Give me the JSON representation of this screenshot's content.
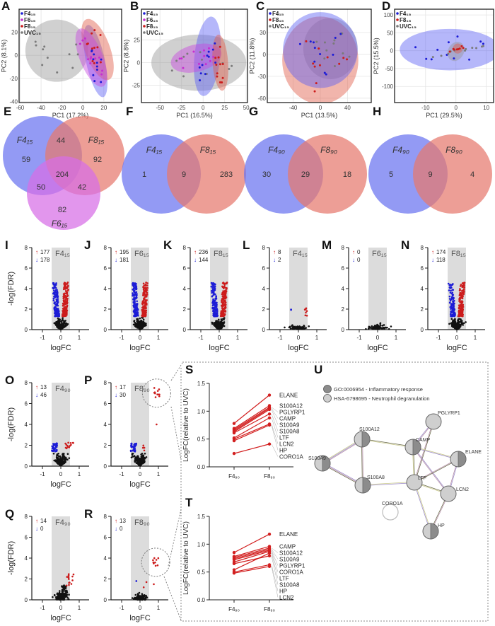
{
  "colors": {
    "F4": "#1c1cd6",
    "F6": "#c62fd0",
    "F8": "#cc1c1c",
    "UVC": "#7a7a7a",
    "up": "#cc1c1c",
    "down": "#1c1cd6",
    "ns": "#111111"
  },
  "chart_data": [
    {
      "panel": "A",
      "type": "scatter",
      "xlabel": "PC1 (17.2%)",
      "ylabel": "PC2 (8.1%)",
      "xlim": [
        -61,
        37
      ],
      "ylim": [
        -41,
        40
      ],
      "xticks": [
        -60,
        -40,
        -20,
        0,
        20
      ],
      "yticks": [
        -40,
        -20,
        0,
        20
      ],
      "grid": true,
      "legend_position": "top-left",
      "legend": [
        {
          "name": "F4₁₅",
          "color": "#1c1cd6"
        },
        {
          "name": "F6₁₅",
          "color": "#c62fd0"
        },
        {
          "name": "F8₁₅",
          "color": "#cc1c1c"
        },
        {
          "name": "UVC₁₅",
          "color": "#7a7a7a"
        }
      ],
      "ellipses": [
        {
          "group": "UVC₁₅",
          "cx": -25,
          "cy": 4,
          "rx": 30,
          "ry": 27,
          "angle": -8
        },
        {
          "group": "F4₁₅",
          "cx": 12,
          "cy": -5,
          "rx": 9,
          "ry": 32,
          "angle": 12
        },
        {
          "group": "F8₁₅",
          "cx": 14,
          "cy": 5,
          "rx": 12,
          "ry": 28,
          "angle": 20
        },
        {
          "group": "F6₁₅",
          "cx": 8,
          "cy": -2,
          "rx": 11,
          "ry": 27,
          "angle": 22
        }
      ]
    },
    {
      "panel": "B",
      "type": "scatter",
      "xlabel": "PC1 (16.5%)",
      "ylabel": "PC2 (8.8%)",
      "xlim": [
        -71.5,
        51.5
      ],
      "ylim": [
        -44,
        59
      ],
      "xticks": [
        -50,
        -25,
        0,
        25,
        50
      ],
      "yticks": [
        -25,
        0,
        25
      ],
      "grid": true,
      "legend_position": "top-left",
      "legend": [
        {
          "name": "F4₁₅",
          "color": "#1c1cd6"
        },
        {
          "name": "F6₁₅",
          "color": "#c62fd0"
        },
        {
          "name": "F8₁₅",
          "color": "#cc1c1c"
        },
        {
          "name": "UVC₁₅",
          "color": "#7a7a7a"
        }
      ],
      "ellipses": [
        {
          "group": "UVC₁₅",
          "cx": -5,
          "cy": 0,
          "rx": 55,
          "ry": 31,
          "angle": 0
        },
        {
          "group": "F4₁₅",
          "cx": 5,
          "cy": 7,
          "rx": 15,
          "ry": 44,
          "angle": -6
        },
        {
          "group": "F6₁₅",
          "cx": -8,
          "cy": 5,
          "rx": 30,
          "ry": 15,
          "angle": 14
        },
        {
          "group": "F8₁₅",
          "cx": 20,
          "cy": 0,
          "rx": 9,
          "ry": 31,
          "angle": 4
        }
      ]
    },
    {
      "panel": "C",
      "type": "scatter",
      "xlabel": "PC1 (13.5%)",
      "ylabel": "PC2 (11.8%)",
      "xlim": [
        -78,
        75
      ],
      "ylim": [
        -66,
        62
      ],
      "xticks": [
        -40,
        0,
        40
      ],
      "yticks": [
        -60,
        -30,
        0,
        30
      ],
      "grid": true,
      "legend_position": "top-left",
      "legend": [
        {
          "name": "F4₁₅",
          "color": "#1c1cd6"
        },
        {
          "name": "F8₁₅",
          "color": "#cc1c1c"
        },
        {
          "name": "UVC₁₅",
          "color": "#7a7a7a"
        }
      ],
      "ellipses": [
        {
          "group": "UVC₁₅",
          "cx": 15,
          "cy": 8,
          "rx": 40,
          "ry": 42,
          "angle": 0
        },
        {
          "group": "F8₁₅",
          "cx": 0,
          "cy": -8,
          "rx": 56,
          "ry": 60,
          "angle": 0
        },
        {
          "group": "F4₁₅",
          "cx": 0,
          "cy": 6,
          "rx": 55,
          "ry": 52,
          "angle": 0
        }
      ]
    },
    {
      "panel": "D",
      "type": "scatter",
      "xlabel": "PC1 (29.5%)",
      "ylabel": "PC2 (15.5%)",
      "xlim": [
        -20.2,
        12.4
      ],
      "ylim": [
        -145,
        116
      ],
      "xticks": [
        -10,
        0,
        10
      ],
      "yticks": [
        -100,
        -50,
        0,
        50,
        100
      ],
      "grid": true,
      "legend_position": "top-left",
      "legend": [
        {
          "name": "F4₁₅",
          "color": "#1c1cd6"
        },
        {
          "name": "F8₁₅",
          "color": "#cc1c1c"
        },
        {
          "name": "UVC₁₅",
          "color": "#7a7a7a"
        }
      ],
      "ellipses": [
        {
          "group": "F4₁₅",
          "cx": -2,
          "cy": 3,
          "rx": 16.5,
          "ry": 58,
          "angle": 0
        },
        {
          "group": "UVC₁₅",
          "cx": 0,
          "cy": -2,
          "rx": 2.6,
          "ry": 28,
          "angle": -28
        },
        {
          "group": "F8₁₅",
          "cx": 0.6,
          "cy": 6,
          "rx": 1.6,
          "ry": 14,
          "angle": -20
        }
      ]
    },
    {
      "panel": "E",
      "type": "venn",
      "sets": [
        "F4₁₅",
        "F8₁₅",
        "F6₁₅"
      ],
      "regions": [
        {
          "sets": [
            "F4₁₅"
          ],
          "value": 59
        },
        {
          "sets": [
            "F4₁₅",
            "F8₁₅"
          ],
          "value": 44
        },
        {
          "sets": [
            "F8₁₅"
          ],
          "value": 92
        },
        {
          "sets": [
            "F4₁₅",
            "F8₁₅",
            "F6₁₅"
          ],
          "value": 204
        },
        {
          "sets": [
            "F4₁₅",
            "F6₁₅"
          ],
          "value": 50
        },
        {
          "sets": [
            "F8₁₅",
            "F6₁₅"
          ],
          "value": 42
        },
        {
          "sets": [
            "F6₁₅"
          ],
          "value": 82
        }
      ]
    },
    {
      "panel": "F",
      "type": "venn",
      "sets": [
        "F4₁₅",
        "F8₁₅"
      ],
      "regions": [
        {
          "sets": [
            "F4₁₅"
          ],
          "value": 1
        },
        {
          "sets": [
            "F4₁₅",
            "F8₁₅"
          ],
          "value": 9
        },
        {
          "sets": [
            "F8₁₅"
          ],
          "value": 283
        }
      ]
    },
    {
      "panel": "G",
      "type": "venn",
      "sets": [
        "F4₉₀",
        "F8₉₀"
      ],
      "regions": [
        {
          "sets": [
            "F4₉₀"
          ],
          "value": 30
        },
        {
          "sets": [
            "F4₉₀",
            "F8₉₀"
          ],
          "value": 29
        },
        {
          "sets": [
            "F8₉₀"
          ],
          "value": 18
        }
      ]
    },
    {
      "panel": "H",
      "type": "venn",
      "sets": [
        "F4₉₀",
        "F8₉₀"
      ],
      "regions": [
        {
          "sets": [
            "F4₉₀"
          ],
          "value": 5
        },
        {
          "sets": [
            "F4₉₀",
            "F8₉₀"
          ],
          "value": 9
        },
        {
          "sets": [
            "F8₉₀"
          ],
          "value": 4
        }
      ]
    },
    {
      "panel": "I",
      "type": "scatter",
      "condition": "F4₁₅",
      "up": 177,
      "down": 178,
      "xlabel": "logFC",
      "ylabel": "-log(FDR)",
      "xticks": [
        -1,
        0,
        1
      ],
      "yticks": [
        0,
        2,
        4,
        6,
        8
      ],
      "ylim": [
        0,
        8
      ],
      "shaded_band": [
        -0.5,
        0.5
      ]
    },
    {
      "panel": "J",
      "type": "scatter",
      "condition": "F6₁₅",
      "up": 195,
      "down": 181,
      "xlabel": "logFC",
      "xticks": [
        -1,
        0,
        1
      ],
      "yticks": [
        0,
        2,
        4,
        6,
        8
      ],
      "ylim": [
        0,
        8
      ],
      "shaded_band": [
        -0.5,
        0.5
      ]
    },
    {
      "panel": "K",
      "type": "scatter",
      "condition": "F8₁₅",
      "up": 236,
      "down": 144,
      "xlabel": "logFC",
      "xticks": [
        -1,
        0,
        1
      ],
      "yticks": [
        0,
        2,
        4,
        6,
        8
      ],
      "ylim": [
        0,
        8
      ],
      "shaded_band": [
        -0.5,
        0.5
      ]
    },
    {
      "panel": "L",
      "type": "scatter",
      "condition": "F4₁₅",
      "up": 8,
      "down": 2,
      "xlabel": "logFC",
      "xticks": [
        -1,
        0,
        1
      ],
      "yticks": [
        0,
        2,
        4,
        6,
        8
      ],
      "ylim": [
        0,
        8
      ],
      "shaded_band": [
        -0.5,
        0.5
      ]
    },
    {
      "panel": "M",
      "type": "scatter",
      "condition": "F6₁₅",
      "up": 0,
      "down": 0,
      "xlabel": "logFC",
      "xticks": [
        -1,
        0,
        1
      ],
      "yticks": [
        0,
        2,
        4,
        6,
        8
      ],
      "ylim": [
        0,
        8
      ],
      "shaded_band": [
        -0.5,
        0.5
      ]
    },
    {
      "panel": "N",
      "type": "scatter",
      "condition": "F8₁₅",
      "up": 174,
      "down": 118,
      "xlabel": "logFC",
      "xticks": [
        -1,
        0,
        1
      ],
      "yticks": [
        0,
        2,
        4,
        6,
        8
      ],
      "ylim": [
        0,
        8
      ],
      "shaded_band": [
        -0.5,
        0.5
      ]
    },
    {
      "panel": "O",
      "type": "scatter",
      "condition": "F4₉₀",
      "up": 13,
      "down": 46,
      "xlabel": "logFC",
      "ylabel": "-log(FDR)",
      "xticks": [
        -1,
        0,
        1
      ],
      "yticks": [
        0,
        2,
        4,
        6,
        8
      ],
      "ylim": [
        0,
        8
      ],
      "shaded_band": [
        -0.5,
        0.5
      ]
    },
    {
      "panel": "P",
      "type": "scatter",
      "condition": "F8₉₀",
      "up": 17,
      "down": 30,
      "xlabel": "logFC",
      "xticks": [
        -1,
        0,
        1
      ],
      "yticks": [
        0,
        2,
        4,
        6,
        8
      ],
      "ylim": [
        0,
        8
      ],
      "shaded_band": [
        -0.5,
        0.5
      ]
    },
    {
      "panel": "Q",
      "type": "scatter",
      "condition": "F4₉₀",
      "up": 14,
      "down": 0,
      "xlabel": "logFC",
      "ylabel": "-log(FDR)",
      "xticks": [
        -1,
        0,
        1
      ],
      "yticks": [
        0,
        2,
        4,
        6,
        8
      ],
      "ylim": [
        0,
        8
      ],
      "shaded_band": [
        -0.5,
        0.5
      ]
    },
    {
      "panel": "R",
      "type": "scatter",
      "condition": "F8₉₀",
      "up": 13,
      "down": 0,
      "xlabel": "logFC",
      "xticks": [
        -1,
        0,
        1
      ],
      "yticks": [
        0,
        2,
        4,
        6,
        8
      ],
      "ylim": [
        0,
        8
      ],
      "shaded_band": [
        -0.5,
        0.5
      ]
    },
    {
      "panel": "S",
      "type": "line",
      "ylabel": "LogFC(relative to  UVC)",
      "categories": [
        "F4₉₀",
        "F8₉₀"
      ],
      "ylim": [
        0,
        1.5
      ],
      "yticks": [
        "0.0",
        "0.5",
        "1.0",
        "1.5"
      ],
      "series": [
        {
          "name": "ELANE",
          "values": [
            0.78,
            1.29
          ]
        },
        {
          "name": "S100A12",
          "values": [
            0.69,
            1.1
          ]
        },
        {
          "name": "PGLYRP1",
          "values": [
            0.67,
            1.07
          ]
        },
        {
          "name": "CAMP",
          "values": [
            0.65,
            1.05
          ]
        },
        {
          "name": "S100A9",
          "values": [
            0.63,
            1.03
          ]
        },
        {
          "name": "S100A8",
          "values": [
            0.61,
            0.95
          ]
        },
        {
          "name": "LTF",
          "values": [
            0.52,
            0.88
          ]
        },
        {
          "name": "LCN2",
          "values": [
            0.5,
            0.77
          ]
        },
        {
          "name": "HP",
          "values": [
            0.47,
            0.75
          ]
        },
        {
          "name": "CORO1A",
          "values": [
            0.24,
            0.41
          ]
        }
      ]
    },
    {
      "panel": "T",
      "type": "line",
      "ylabel": "LogFC(relative to  UVC)",
      "categories": [
        "F4₉₀",
        "F8₉₀"
      ],
      "ylim": [
        0,
        1.5
      ],
      "yticks": [
        "0.0",
        "0.5",
        "1.0",
        "1.5"
      ],
      "series": [
        {
          "name": "ELANE",
          "values": [
            0.85,
            1.18
          ]
        },
        {
          "name": "CAMP",
          "values": [
            0.78,
            0.96
          ]
        },
        {
          "name": "S100A12",
          "values": [
            0.76,
            0.93
          ]
        },
        {
          "name": "S100A9",
          "values": [
            0.74,
            0.91
          ]
        },
        {
          "name": "PGLYRP1",
          "values": [
            0.72,
            0.89
          ]
        },
        {
          "name": "CORO1A",
          "values": [
            0.68,
            0.87
          ]
        },
        {
          "name": "S100A8",
          "values": [
            0.65,
            0.79
          ]
        },
        {
          "name": "LTF",
          "values": [
            0.54,
            0.84
          ]
        },
        {
          "name": "HP",
          "values": [
            0.5,
            0.63
          ]
        },
        {
          "name": "LCN2",
          "values": [
            0.48,
            0.6
          ]
        }
      ]
    },
    {
      "panel": "U",
      "type": "network",
      "legend": [
        {
          "label": "GO:0006954 - Inflammatory response",
          "color": "#8c8c8c"
        },
        {
          "label": "HSA-6798695 - Neutrophil degranulation",
          "color": "#cfcfcf"
        }
      ],
      "nodes": [
        {
          "name": "PGLYRP1",
          "terms": [
            "HSA-6798695"
          ]
        },
        {
          "name": "S100A12",
          "terms": [
            "GO:0006954",
            "HSA-6798695"
          ]
        },
        {
          "name": "CAMP",
          "terms": [
            "GO:0006954",
            "HSA-6798695"
          ]
        },
        {
          "name": "ELANE",
          "terms": [
            "GO:0006954",
            "HSA-6798695"
          ]
        },
        {
          "name": "S100A9",
          "terms": [
            "GO:0006954",
            "HSA-6798695"
          ]
        },
        {
          "name": "S100A8",
          "terms": [
            "GO:0006954",
            "HSA-6798695"
          ]
        },
        {
          "name": "LTF",
          "terms": [
            "HSA-6798695"
          ]
        },
        {
          "name": "LCN2",
          "terms": [
            "HSA-6798695"
          ]
        },
        {
          "name": "CORO1A",
          "terms": []
        },
        {
          "name": "HP",
          "terms": [
            "GO:0006954",
            "HSA-6798695"
          ]
        }
      ],
      "edges": [
        [
          "S100A9",
          "S100A12"
        ],
        [
          "S100A9",
          "S100A8"
        ],
        [
          "S100A12",
          "S100A8"
        ],
        [
          "S100A12",
          "CAMP"
        ],
        [
          "S100A8",
          "LTF"
        ],
        [
          "CAMP",
          "PGLYRP1"
        ],
        [
          "LTF",
          "PGLYRP1"
        ],
        [
          "CAMP",
          "LTF"
        ],
        [
          "CAMP",
          "ELANE"
        ],
        [
          "CAMP",
          "LCN2"
        ],
        [
          "LTF",
          "ELANE"
        ],
        [
          "LTF",
          "LCN2"
        ],
        [
          "LTF",
          "HP"
        ],
        [
          "ELANE",
          "LCN2"
        ],
        [
          "LCN2",
          "HP"
        ]
      ]
    }
  ]
}
